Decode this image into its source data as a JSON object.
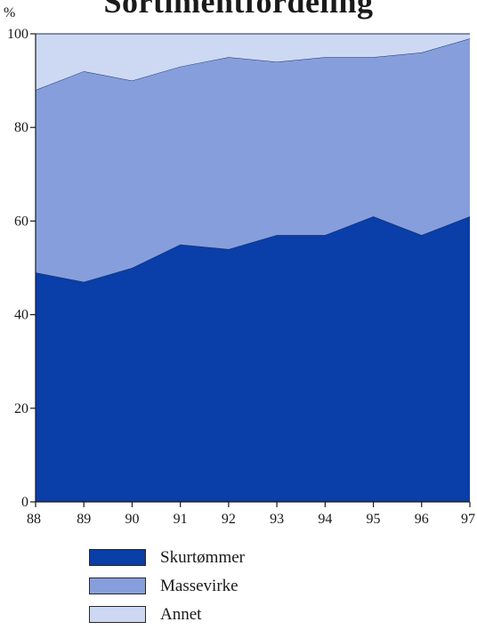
{
  "chart_data": {
    "type": "area",
    "stacked": true,
    "title": "Sortimentfordeling",
    "ylabel": "%",
    "xlabel": "",
    "categories": [
      "88",
      "89",
      "90",
      "91",
      "92",
      "93",
      "94",
      "95",
      "96",
      "97"
    ],
    "ylim": [
      0,
      100
    ],
    "yticks": [
      0,
      20,
      40,
      60,
      80,
      100
    ],
    "grid": false,
    "legend": "bottom",
    "series": [
      {
        "name": "Skurtømmer",
        "color": "#0a3ea8",
        "values": [
          49,
          47,
          50,
          55,
          54,
          57,
          57,
          61,
          57,
          61
        ]
      },
      {
        "name": "Massevirke",
        "color": "#869fdc",
        "values": [
          39,
          45,
          40,
          38,
          41,
          37,
          38,
          34,
          39,
          38
        ]
      },
      {
        "name": "Annet",
        "color": "#cdd9f3",
        "values": [
          12,
          8,
          10,
          7,
          5,
          6,
          5,
          5,
          4,
          1
        ]
      }
    ]
  }
}
